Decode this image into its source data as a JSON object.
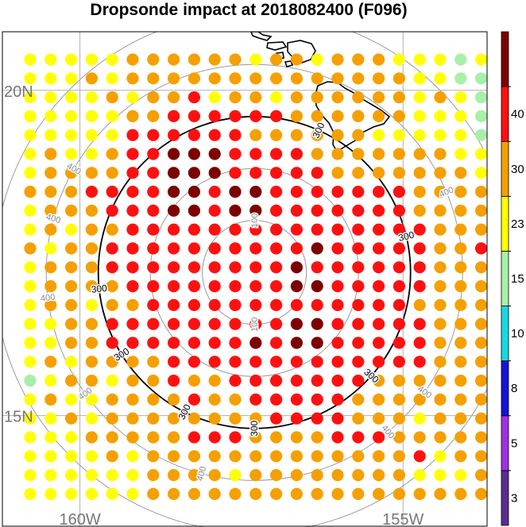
{
  "chart_data": {
    "type": "scatter",
    "title": "Dropsonde impact at 2018082400 (F096)",
    "xlabel": "",
    "ylabel": "",
    "map": {
      "lon_range": [
        -161.2,
        -153.7
      ],
      "lat_range": [
        13.3,
        20.9
      ],
      "lon_ticks": [
        {
          "value": -160,
          "label": "160W"
        },
        {
          "value": -155,
          "label": "155W"
        }
      ],
      "lat_ticks": [
        {
          "value": 20,
          "label": "20N"
        },
        {
          "value": 15,
          "label": "15N"
        }
      ],
      "graticule": true,
      "coastline": "Hawaiian Islands"
    },
    "colorbar": {
      "placement": "right",
      "tick_labels": [
        "3",
        "5",
        "8",
        "10",
        "15",
        "23",
        "30",
        "40"
      ],
      "colors": [
        "#5b2c8f",
        "#a030e0",
        "#1414d8",
        "#18d8e0",
        "#a8f0a8",
        "#ffff00",
        "#f5a000",
        "#ff1010",
        "#7d0000"
      ]
    },
    "range_rings": {
      "center": {
        "lon": -157.3,
        "lat": 17.2
      },
      "rings": [
        {
          "label": "100",
          "emphasis": false
        },
        {
          "label": "",
          "emphasis": false
        },
        {
          "label": "300",
          "emphasis": true
        },
        {
          "label": "400",
          "emphasis": false
        },
        {
          "label": "",
          "emphasis": false
        }
      ]
    },
    "grid_rows": [
      "YYYYYOOOOOOYOOYOOOYYYGY",
      "YYYOYOOOOOOOOOOOOOOYYGG",
      "YYYYOYOORYOOYOOOOOOYOYG",
      "YYYYYOORRRRRROOOOOOYYYG",
      "YYYYYRRRRRROOOOOOYYYYYG",
      "YOYYORRDDDRRRROOOOOOOYY",
      "YOOOORRDDDRRRRROOOOOOOY",
      "OOORRRRDDRDDRRRRRRROOOO",
      "YOOORRRDDRDDRRRRRRROOOO",
      "YOYOORRRRRRRRRRRRRRROOO",
      "OYOORRRRRRRRRRDRRRRROOR",
      "YOOORRRRRRRRRDRRRRRROOO",
      "YOOOORRRRRRRRDDRRRRROOO",
      "YOOYOORRRRRRRRRRRRROOOO",
      "YYOORRRRRRRRRDDRRRRROOO",
      "YYOORRRRRRRDRDDRRRRROOO",
      "YOYOOOORRRRRRRRRRRRROOO",
      "GYOOYOOROORRRRRRROOOOOO",
      "YOYYOOOOROORRRRROOOOOOO",
      "YYOYOOOOOOOORRRROOOYOOO",
      "YYYOOOOORRROOOORRROOOOO",
      "YYYYOYOOOOOOOOOOOOORYOO",
      "YYYYYYOOOOYOOOOOOOOYYYO",
      "YYYYYYOOOOOOOOOOOOOOOOO"
    ],
    "category_colors": {
      "Y": "#ffff00",
      "O": "#f5a000",
      "R": "#ff1010",
      "D": "#7d0000",
      "G": "#a8f0a8"
    }
  }
}
